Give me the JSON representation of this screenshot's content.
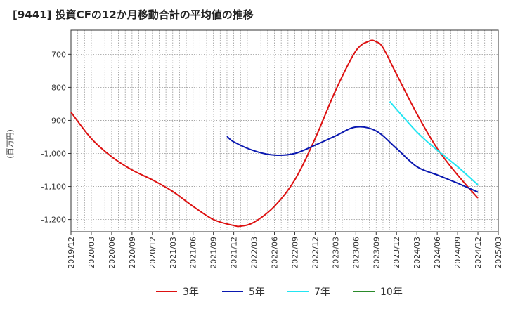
{
  "chart_data": {
    "type": "line",
    "title": "[9441]  投資CFの12か月移動合計の平均値の推移",
    "ylabel": "(百万円)",
    "x_ticks": [
      "2019/12",
      "2020/03",
      "2020/06",
      "2020/09",
      "2020/12",
      "2021/03",
      "2021/06",
      "2021/09",
      "2021/12",
      "2022/03",
      "2022/06",
      "2022/09",
      "2022/12",
      "2023/03",
      "2023/06",
      "2023/09",
      "2023/12",
      "2024/03",
      "2024/06",
      "2024/09",
      "2024/12",
      "2025/03"
    ],
    "y_ticks": [
      -700,
      -800,
      -900,
      -1000,
      -1100,
      -1200
    ],
    "y_tick_labels": [
      "-700",
      "-800",
      "-900",
      "-1,000",
      "-1,100",
      "-1,200"
    ],
    "ylim": [
      -1237,
      -627
    ],
    "grid": true,
    "legend_position": "bottom",
    "series": [
      {
        "name": "3年",
        "color": "#dd1111",
        "x": [
          "2019/12",
          "2020/03",
          "2020/06",
          "2020/09",
          "2020/12",
          "2021/03",
          "2021/06",
          "2021/09",
          "2021/12",
          "2022/01",
          "2022/03",
          "2022/06",
          "2022/09",
          "2022/12",
          "2023/03",
          "2023/06",
          "2023/08",
          "2023/09",
          "2023/10",
          "2023/12",
          "2024/03",
          "2024/06",
          "2024/09",
          "2024/12"
        ],
        "y": [
          -875,
          -955,
          -1010,
          -1050,
          -1080,
          -1115,
          -1160,
          -1200,
          -1218,
          -1220,
          -1208,
          -1160,
          -1080,
          -955,
          -810,
          -690,
          -660,
          -662,
          -680,
          -760,
          -880,
          -985,
          -1065,
          -1135
        ]
      },
      {
        "name": "5年",
        "color": "#0a18b0",
        "x": [
          "2021/11",
          "2021/12",
          "2022/03",
          "2022/06",
          "2022/09",
          "2022/12",
          "2023/03",
          "2023/06",
          "2023/09",
          "2023/12",
          "2024/03",
          "2024/06",
          "2024/09",
          "2024/12"
        ],
        "y": [
          -948,
          -965,
          -992,
          -1005,
          -1000,
          -975,
          -947,
          -920,
          -932,
          -985,
          -1040,
          -1065,
          -1090,
          -1117
        ]
      },
      {
        "name": "7年",
        "color": "#22e5f2",
        "x": [
          "2023/11",
          "2024/03",
          "2024/06",
          "2024/09",
          "2024/12"
        ],
        "y": [
          -843,
          -935,
          -990,
          -1040,
          -1095
        ]
      },
      {
        "name": "10年",
        "color": "#2a8a2a",
        "x": [],
        "y": []
      }
    ]
  }
}
